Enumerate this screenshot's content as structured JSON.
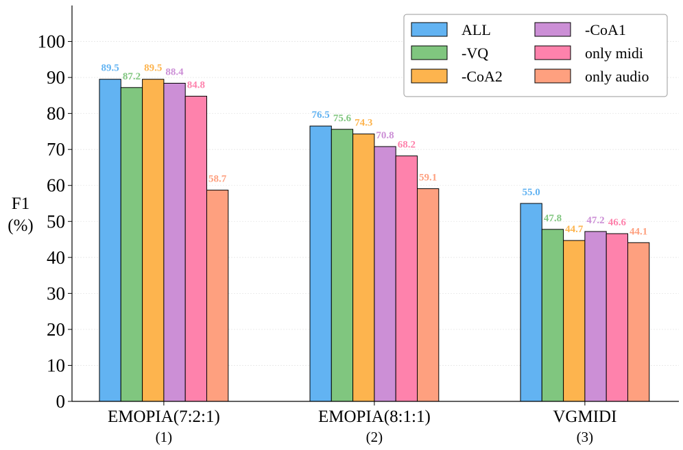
{
  "chart_data": {
    "type": "bar",
    "ylabel_line1": "F1",
    "ylabel_line2": "(%)",
    "ylim": [
      0,
      110
    ],
    "yticks": [
      0,
      10,
      20,
      30,
      40,
      50,
      60,
      70,
      80,
      90,
      100
    ],
    "grid": true,
    "legend_position": "top-right",
    "categories": [
      "EMOPIA(7:2:1)",
      "EMOPIA(8:1:1)",
      "VGMIDI"
    ],
    "category_sublabels": [
      "(1)",
      "(2)",
      "(3)"
    ],
    "series": [
      {
        "name": "ALL",
        "color": "#62B3F2",
        "label_color": "#62B3F2",
        "values": [
          89.5,
          76.5,
          55.0
        ]
      },
      {
        "name": "-VQ",
        "color": "#80C67F",
        "label_color": "#80C67F",
        "values": [
          87.2,
          75.6,
          47.8
        ]
      },
      {
        "name": "-CoA2",
        "color": "#FDB44E",
        "label_color": "#FDB44E",
        "values": [
          89.5,
          74.3,
          44.7
        ]
      },
      {
        "name": "-CoA1",
        "color": "#CC8FD6",
        "label_color": "#CC8FD6",
        "values": [
          88.4,
          70.8,
          47.2
        ]
      },
      {
        "name": "only midi",
        "color": "#FE82AC",
        "label_color": "#FE82AC",
        "values": [
          84.8,
          68.2,
          46.6
        ]
      },
      {
        "name": "only audio",
        "color": "#FEA07F",
        "label_color": "#FEA07F",
        "values": [
          58.7,
          59.1,
          44.1
        ]
      }
    ]
  }
}
